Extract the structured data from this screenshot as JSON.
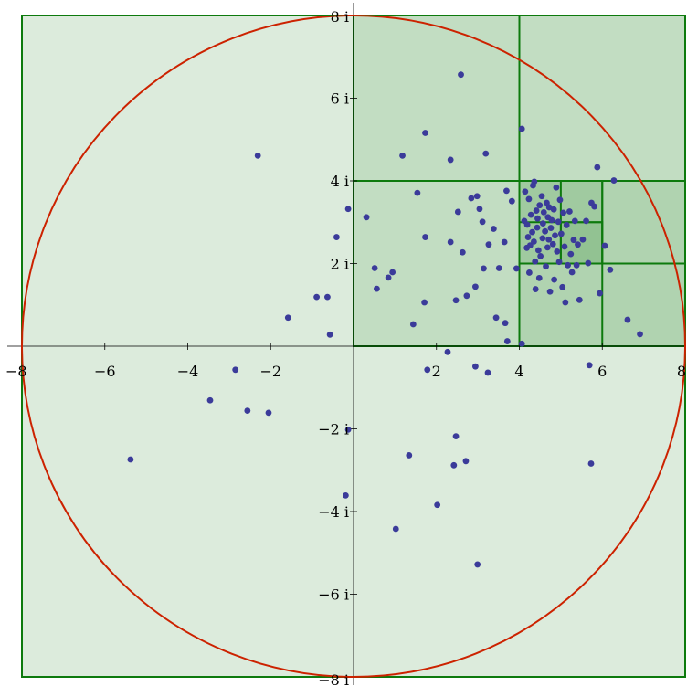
{
  "chart_data": {
    "type": "scatter",
    "title": "",
    "xlabel": "",
    "ylabel": "",
    "xlim": [
      -8,
      8
    ],
    "ylim": [
      -8,
      8
    ],
    "grid": false,
    "x_ticks": [
      {
        "value": -8,
        "label": "−8"
      },
      {
        "value": -6,
        "label": "−6"
      },
      {
        "value": -4,
        "label": "−4"
      },
      {
        "value": -2,
        "label": "−2"
      },
      {
        "value": 2,
        "label": "2"
      },
      {
        "value": 4,
        "label": "4"
      },
      {
        "value": 6,
        "label": "6"
      },
      {
        "value": 8,
        "label": "8"
      }
    ],
    "y_ticks": [
      {
        "value": 8,
        "label": "8 i"
      },
      {
        "value": 6,
        "label": "6 i"
      },
      {
        "value": 4,
        "label": "4 i"
      },
      {
        "value": 2,
        "label": "2 i"
      },
      {
        "value": -2,
        "label": "−2 i"
      },
      {
        "value": -4,
        "label": "−4 i"
      },
      {
        "value": -6,
        "label": "−6 i"
      },
      {
        "value": -8,
        "label": "−8 i"
      }
    ],
    "circle": {
      "center": [
        0,
        0
      ],
      "radius": 8,
      "color": "#cc2200"
    },
    "regions": [
      {
        "x": [
          -8,
          8
        ],
        "y": [
          -8,
          8
        ],
        "level": 0
      },
      {
        "x": [
          0,
          8
        ],
        "y": [
          0,
          8
        ],
        "level": 1
      },
      {
        "x": [
          4,
          8
        ],
        "y": [
          0,
          4
        ],
        "level": 2
      },
      {
        "x": [
          4,
          6
        ],
        "y": [
          2,
          4
        ],
        "level": 3
      },
      {
        "x": [
          5,
          6
        ],
        "y": [
          2,
          3
        ],
        "level": 4
      }
    ],
    "region_lines": [
      {
        "x1": 0,
        "y1": 4,
        "x2": 8,
        "y2": 4
      },
      {
        "x1": 4,
        "y1": 0,
        "x2": 4,
        "y2": 8
      },
      {
        "x1": 4,
        "y1": 2,
        "x2": 8,
        "y2": 2
      },
      {
        "x1": 6,
        "y1": 0,
        "x2": 6,
        "y2": 4
      },
      {
        "x1": 4,
        "y1": 3,
        "x2": 6,
        "y2": 3
      },
      {
        "x1": 5,
        "y1": 2,
        "x2": 5,
        "y2": 4
      }
    ],
    "colors": {
      "fill": "#2e8b2e",
      "outline": "#0d7a0d",
      "point": "#3b3b9a",
      "axis": "#000000"
    },
    "points": [
      [
        -2.31,
        4.61
      ],
      [
        -5.38,
        -2.74
      ],
      [
        -3.46,
        -1.31
      ],
      [
        -2.85,
        -0.57
      ],
      [
        -2.56,
        -1.56
      ],
      [
        -2.05,
        -1.61
      ],
      [
        -1.58,
        0.69
      ],
      [
        -0.89,
        1.19
      ],
      [
        -0.63,
        1.19
      ],
      [
        -0.57,
        0.28
      ],
      [
        -0.41,
        2.64
      ],
      [
        -0.13,
        3.32
      ],
      [
        -0.19,
        -3.61
      ],
      [
        -0.13,
        -2.02
      ],
      [
        0.31,
        3.12
      ],
      [
        0.51,
        1.89
      ],
      [
        0.56,
        1.39
      ],
      [
        0.84,
        1.66
      ],
      [
        0.94,
        1.79
      ],
      [
        1.18,
        4.61
      ],
      [
        1.44,
        0.53
      ],
      [
        1.54,
        3.71
      ],
      [
        1.71,
        1.06
      ],
      [
        1.73,
        2.64
      ],
      [
        1.73,
        5.16
      ],
      [
        1.78,
        -0.57
      ],
      [
        2.02,
        -3.84
      ],
      [
        1.02,
        -4.42
      ],
      [
        1.34,
        -2.64
      ],
      [
        2.27,
        -0.14
      ],
      [
        2.34,
        4.51
      ],
      [
        2.34,
        2.52
      ],
      [
        2.42,
        -2.88
      ],
      [
        2.47,
        -2.18
      ],
      [
        2.47,
        1.11
      ],
      [
        2.52,
        3.25
      ],
      [
        2.59,
        6.57
      ],
      [
        2.63,
        2.27
      ],
      [
        2.71,
        -2.78
      ],
      [
        2.73,
        1.22
      ],
      [
        2.84,
        3.58
      ],
      [
        2.94,
        1.44
      ],
      [
        2.98,
        3.63
      ],
      [
        2.94,
        -0.49
      ],
      [
        2.99,
        -5.28
      ],
      [
        3.04,
        3.32
      ],
      [
        3.11,
        3.01
      ],
      [
        3.14,
        1.88
      ],
      [
        3.19,
        4.66
      ],
      [
        3.24,
        -0.64
      ],
      [
        3.26,
        2.46
      ],
      [
        3.38,
        2.84
      ],
      [
        3.44,
        0.69
      ],
      [
        3.51,
        1.89
      ],
      [
        3.64,
        2.52
      ],
      [
        3.66,
        0.56
      ],
      [
        3.69,
        3.76
      ],
      [
        3.71,
        0.12
      ],
      [
        3.82,
        3.51
      ],
      [
        3.93,
        1.88
      ],
      [
        4.06,
        0.06
      ],
      [
        4.06,
        5.26
      ],
      [
        4.12,
        3.03
      ],
      [
        4.14,
        3.74
      ],
      [
        4.18,
        2.38
      ],
      [
        4.19,
        2.94
      ],
      [
        4.21,
        2.64
      ],
      [
        4.23,
        3.56
      ],
      [
        4.24,
        1.78
      ],
      [
        4.26,
        2.44
      ],
      [
        4.28,
        3.18
      ],
      [
        4.31,
        2.76
      ],
      [
        4.33,
        3.89
      ],
      [
        4.35,
        2.53
      ],
      [
        4.36,
        3.98
      ],
      [
        4.38,
        2.05
      ],
      [
        4.39,
        1.38
      ],
      [
        4.41,
        3.28
      ],
      [
        4.43,
        2.87
      ],
      [
        4.44,
        3.09
      ],
      [
        4.46,
        2.32
      ],
      [
        4.48,
        1.65
      ],
      [
        4.49,
        3.41
      ],
      [
        4.51,
        2.18
      ],
      [
        4.54,
        3.63
      ],
      [
        4.56,
        2.61
      ],
      [
        4.57,
        2.97
      ],
      [
        4.59,
        3.24
      ],
      [
        4.62,
        2.78
      ],
      [
        4.64,
        1.93
      ],
      [
        4.66,
        3.47
      ],
      [
        4.68,
        2.39
      ],
      [
        4.69,
        3.12
      ],
      [
        4.71,
        2.58
      ],
      [
        4.72,
        3.36
      ],
      [
        4.74,
        1.32
      ],
      [
        4.76,
        2.86
      ],
      [
        4.78,
        3.05
      ],
      [
        4.81,
        2.47
      ],
      [
        4.83,
        3.31
      ],
      [
        4.84,
        1.61
      ],
      [
        4.86,
        2.68
      ],
      [
        4.89,
        3.84
      ],
      [
        4.91,
        2.29
      ],
      [
        4.94,
        3.01
      ],
      [
        4.96,
        2.04
      ],
      [
        4.98,
        3.54
      ],
      [
        5.01,
        2.72
      ],
      [
        5.04,
        1.43
      ],
      [
        5.06,
        3.23
      ],
      [
        5.09,
        2.41
      ],
      [
        5.11,
        1.06
      ],
      [
        5.14,
        2.93
      ],
      [
        5.17,
        1.96
      ],
      [
        5.21,
        3.26
      ],
      [
        5.24,
        2.23
      ],
      [
        5.27,
        1.79
      ],
      [
        5.31,
        2.57
      ],
      [
        5.34,
        3.03
      ],
      [
        5.38,
        1.96
      ],
      [
        5.41,
        2.46
      ],
      [
        5.45,
        1.12
      ],
      [
        5.53,
        2.58
      ],
      [
        5.61,
        3.03
      ],
      [
        5.66,
        2.01
      ],
      [
        5.69,
        -0.46
      ],
      [
        5.73,
        -2.84
      ],
      [
        5.74,
        3.47
      ],
      [
        5.81,
        3.38
      ],
      [
        5.88,
        4.33
      ],
      [
        5.94,
        1.28
      ],
      [
        6.06,
        2.43
      ],
      [
        6.19,
        1.85
      ],
      [
        6.28,
        4.01
      ],
      [
        6.61,
        0.64
      ],
      [
        6.91,
        0.29
      ]
    ]
  }
}
